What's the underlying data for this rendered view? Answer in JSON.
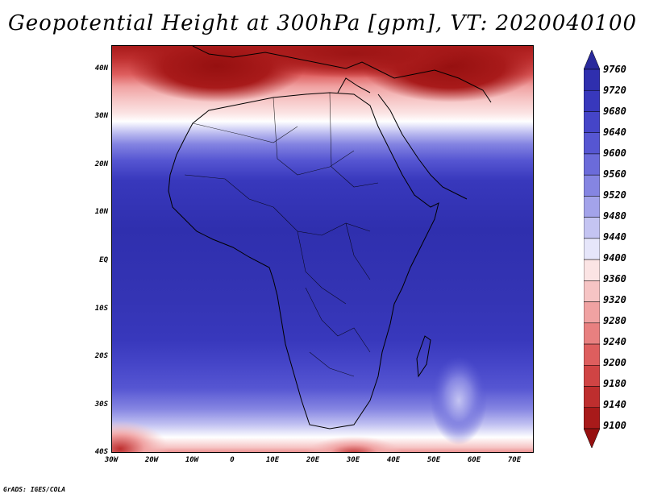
{
  "title": "Geopotential Height at 300hPa [gpm], VT: 2020040100",
  "footer": "GrADS: IGES/COLA",
  "map": {
    "lat_labels": [
      "40N",
      "30N",
      "20N",
      "10N",
      "EQ",
      "10S",
      "20S",
      "30S",
      "40S"
    ],
    "lon_labels": [
      "30W",
      "20W",
      "10W",
      "0",
      "10E",
      "20E",
      "30E",
      "40E",
      "50E",
      "60E",
      "70E"
    ],
    "lat_range": [
      -40,
      45
    ],
    "lon_range": [
      -30,
      75
    ]
  },
  "colorbar": {
    "levels": [
      "9760",
      "9720",
      "9680",
      "9640",
      "9600",
      "9560",
      "9520",
      "9480",
      "9440",
      "9400",
      "9360",
      "9320",
      "9280",
      "9240",
      "9200",
      "9180",
      "9140",
      "9100"
    ],
    "colors": [
      "#2a2a9c",
      "#2f2fae",
      "#3838bc",
      "#4545c8",
      "#5656d2",
      "#6b6bda",
      "#8585e2",
      "#a3a3ea",
      "#c4c4f2",
      "#e6e6fa",
      "#fbe4e4",
      "#f6c4c4",
      "#f0a2a2",
      "#e88080",
      "#de5e5e",
      "#d04444",
      "#be2e2e",
      "#a81a1a",
      "#961010"
    ]
  }
}
